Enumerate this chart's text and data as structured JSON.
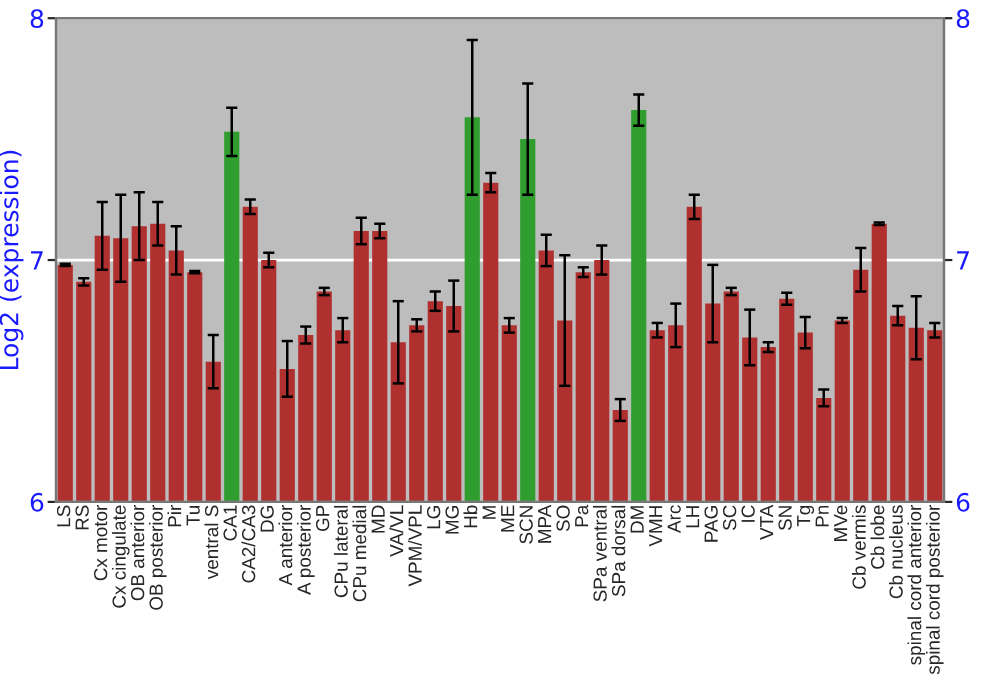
{
  "chart_data": {
    "type": "bar",
    "ylabel": "Log2 (expression)",
    "categories": [
      "LS",
      "RS",
      "Cx motor",
      "Cx cingulate",
      "OB anterior",
      "OB posterior",
      "Pir",
      "Tu",
      "ventral S",
      "CA1",
      "CA2/CA3",
      "DG",
      "A anterior",
      "A posterior",
      "GP",
      "CPu lateral",
      "CPu medial",
      "MD",
      "VA/VL",
      "VPM/VPL",
      "LG",
      "MG",
      "Hb",
      "M",
      "ME",
      "SCN",
      "MPA",
      "SO",
      "Pa",
      "SPa ventral",
      "SPa dorsal",
      "DM",
      "VMH",
      "Arc",
      "LH",
      "PAG",
      "SC",
      "IC",
      "VTA",
      "SN",
      "Tg",
      "Pn",
      "MVe",
      "Cb vermis",
      "Cb lobe",
      "Cb nucleus",
      "spinal cord anterior",
      "spinal cord posterior"
    ],
    "values": [
      6.98,
      6.91,
      7.1,
      7.09,
      7.14,
      7.15,
      7.04,
      6.95,
      6.58,
      7.53,
      7.22,
      7.0,
      6.55,
      6.69,
      6.87,
      6.71,
      7.12,
      7.12,
      6.66,
      6.73,
      6.83,
      6.81,
      7.59,
      7.32,
      6.73,
      7.5,
      7.04,
      6.75,
      6.95,
      7.0,
      6.38,
      7.62,
      6.71,
      6.73,
      7.22,
      6.82,
      6.87,
      6.68,
      6.64,
      6.84,
      6.7,
      6.43,
      6.75,
      6.96,
      7.15,
      6.77,
      6.72,
      6.71
    ],
    "errors": [
      0.005,
      0.015,
      0.14,
      0.18,
      0.14,
      0.09,
      0.1,
      0.005,
      0.11,
      0.1,
      0.03,
      0.03,
      0.115,
      0.035,
      0.015,
      0.05,
      0.055,
      0.03,
      0.17,
      0.025,
      0.04,
      0.105,
      0.32,
      0.04,
      0.03,
      0.23,
      0.065,
      0.27,
      0.02,
      0.06,
      0.045,
      0.065,
      0.03,
      0.09,
      0.05,
      0.16,
      0.015,
      0.115,
      0.02,
      0.025,
      0.065,
      0.035,
      0.01,
      0.09,
      0.005,
      0.04,
      0.13,
      0.03
    ],
    "colors": [
      "#b03030",
      "#b03030",
      "#b03030",
      "#b03030",
      "#b03030",
      "#b03030",
      "#b03030",
      "#b03030",
      "#b03030",
      "#2f9e2f",
      "#b03030",
      "#b03030",
      "#b03030",
      "#b03030",
      "#b03030",
      "#b03030",
      "#b03030",
      "#b03030",
      "#b03030",
      "#b03030",
      "#b03030",
      "#b03030",
      "#2f9e2f",
      "#b03030",
      "#b03030",
      "#2f9e2f",
      "#b03030",
      "#b03030",
      "#b03030",
      "#b03030",
      "#b03030",
      "#2f9e2f",
      "#b03030",
      "#b03030",
      "#b03030",
      "#b03030",
      "#b03030",
      "#b03030",
      "#b03030",
      "#b03030",
      "#b03030",
      "#b03030",
      "#b03030",
      "#b03030",
      "#b03030",
      "#b03030",
      "#b03030",
      "#b03030"
    ],
    "ylim": [
      6,
      8
    ],
    "yticks": [
      6,
      7,
      8
    ],
    "y2lim": [
      6,
      8
    ],
    "y2ticks": [
      6,
      7,
      8
    ],
    "grid": "y",
    "legend": false
  }
}
